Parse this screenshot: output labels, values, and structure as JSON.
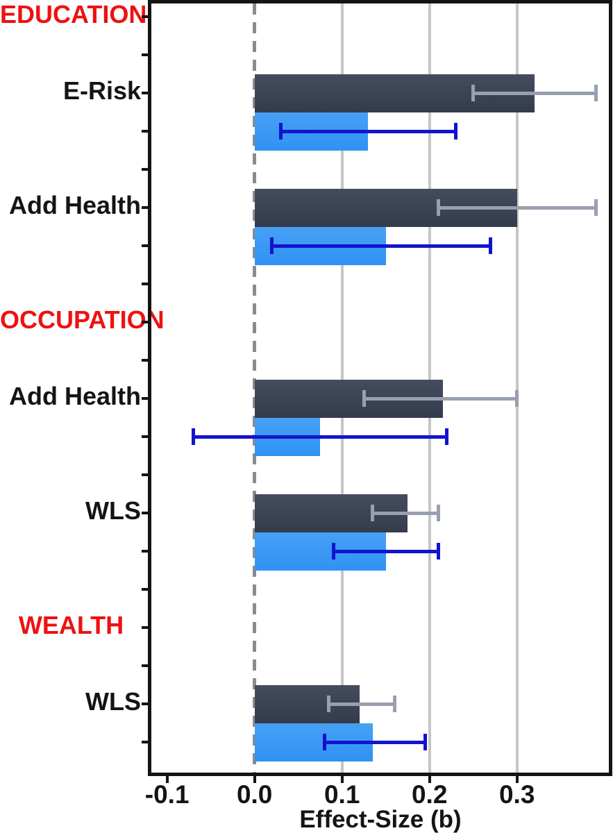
{
  "chart_data": {
    "type": "bar",
    "orientation": "horizontal",
    "title": "",
    "xlabel": "Effect-Size (b)",
    "xlim": [
      -0.118,
      0.405
    ],
    "xticks": [
      -0.1,
      0.0,
      0.1,
      0.2,
      0.3
    ],
    "xtick_labels": [
      "-0.1",
      "0.0",
      "0.1",
      "0.2",
      "0.3"
    ],
    "gridlines_at": [
      0.1,
      0.2,
      0.3
    ],
    "zero_reference_line": "dashed",
    "grid": "vertical-only",
    "legend": "none",
    "series": [
      {
        "name": "navy",
        "bar_color": "#3b4254",
        "error_bar_color": "#98a0af"
      },
      {
        "name": "blue",
        "bar_color": "#3598f3",
        "error_bar_color": "#1312cf"
      }
    ],
    "sections": [
      {
        "label": "EDUCATION",
        "rows": [
          {
            "label": "E-Risk",
            "values": [
              0.32,
              0.13
            ],
            "ci": [
              [
                0.25,
                0.39
              ],
              [
                0.03,
                0.23
              ]
            ]
          },
          {
            "label": "Add Health",
            "values": [
              0.3,
              0.15
            ],
            "ci": [
              [
                0.21,
                0.39
              ],
              [
                0.02,
                0.27
              ]
            ]
          }
        ]
      },
      {
        "label": "OCCUPATION",
        "rows": [
          {
            "label": "Add Health",
            "values": [
              0.215,
              0.075
            ],
            "ci": [
              [
                0.125,
                0.3
              ],
              [
                -0.07,
                0.22
              ]
            ]
          },
          {
            "label": "WLS",
            "values": [
              0.175,
              0.15
            ],
            "ci": [
              [
                0.135,
                0.21
              ],
              [
                0.09,
                0.21
              ]
            ]
          }
        ]
      },
      {
        "label": "WEALTH",
        "rows": [
          {
            "label": "WLS",
            "values": [
              0.12,
              0.135
            ],
            "ci": [
              [
                0.085,
                0.16
              ],
              [
                0.08,
                0.195
              ]
            ]
          }
        ]
      }
    ],
    "colors": {
      "section_label": "#ee1111",
      "text": "#141414",
      "axis": "#141414",
      "gridline": "#c6c6c6",
      "zero_line": "#8b8b8b",
      "background": "#ffffff"
    }
  }
}
